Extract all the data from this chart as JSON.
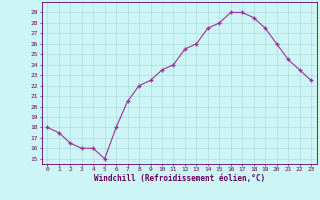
{
  "x": [
    0,
    1,
    2,
    3,
    4,
    5,
    6,
    7,
    8,
    9,
    10,
    11,
    12,
    13,
    14,
    15,
    16,
    17,
    18,
    19,
    20,
    21,
    22,
    23
  ],
  "y": [
    18,
    17.5,
    16.5,
    16,
    16,
    15,
    18,
    20.5,
    22,
    22.5,
    23.5,
    24,
    25.5,
    26,
    27.5,
    28,
    29,
    29,
    28.5,
    27.5,
    26,
    24.5,
    23.5,
    22.5
  ],
  "xlabel": "Windchill (Refroidissement éolien,°C)",
  "line_color": "#993399",
  "bg_color": "#cdf5f5",
  "grid_color": "#aadddd",
  "label_color": "#660066",
  "ylim": [
    14.5,
    30
  ],
  "xlim": [
    -0.5,
    23.5
  ],
  "yticks": [
    15,
    16,
    17,
    18,
    19,
    20,
    21,
    22,
    23,
    24,
    25,
    26,
    27,
    28,
    29
  ],
  "xticks": [
    0,
    1,
    2,
    3,
    4,
    5,
    6,
    7,
    8,
    9,
    10,
    11,
    12,
    13,
    14,
    15,
    16,
    17,
    18,
    19,
    20,
    21,
    22,
    23
  ]
}
